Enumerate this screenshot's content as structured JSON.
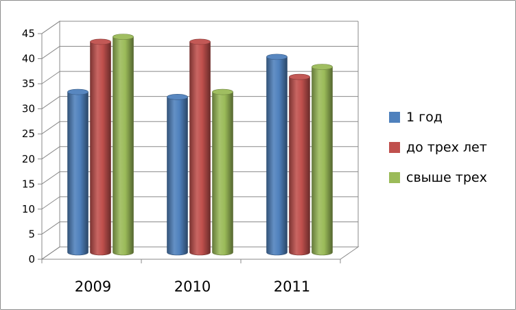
{
  "chart_data": {
    "type": "bar",
    "style": "3d-cylinder",
    "categories": [
      "2009",
      "2010",
      "2011"
    ],
    "series": [
      {
        "name": "1 год",
        "values": [
          32,
          31,
          39
        ],
        "color": "#4f81bd"
      },
      {
        "name": "до трех лет",
        "values": [
          42,
          42,
          35
        ],
        "color": "#c0504d"
      },
      {
        "name": "свыше трех",
        "values": [
          43,
          32,
          37
        ],
        "color": "#9bbb59"
      }
    ],
    "ylim": [
      0,
      45
    ],
    "yticks": [
      0,
      5,
      10,
      15,
      20,
      25,
      30,
      35,
      40,
      45
    ],
    "grid": true,
    "legend_position": "right"
  }
}
